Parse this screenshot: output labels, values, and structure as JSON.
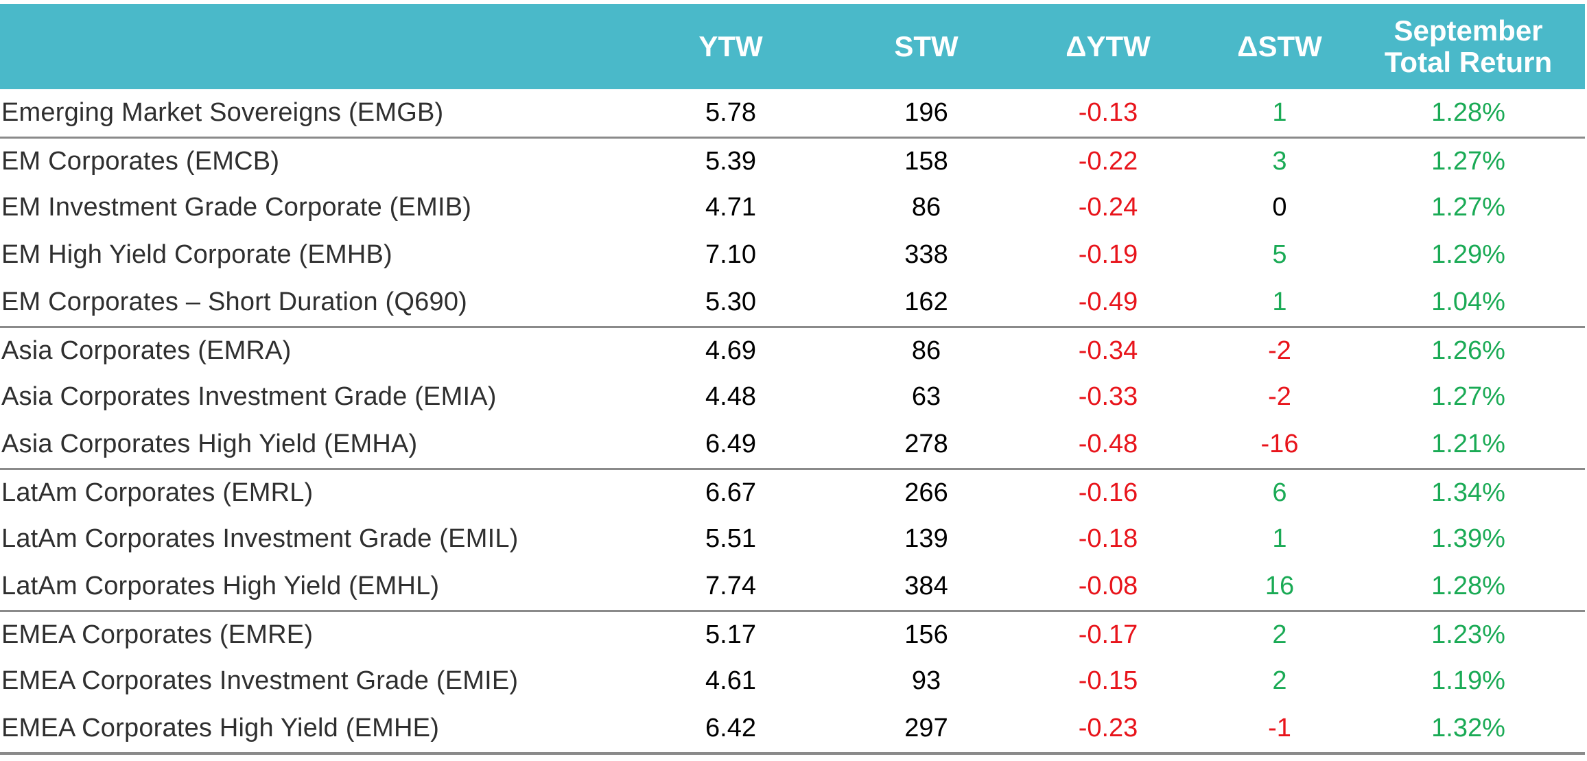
{
  "colors": {
    "header_bg": "#4ab9c9",
    "header_text": "#ffffff",
    "negative": "#e8141b",
    "positive": "#1aaa55",
    "neutral": "#000000"
  },
  "chart_data": {
    "type": "table",
    "columns": [
      "",
      "YTW",
      "STW",
      "ΔYTW",
      "ΔSTW",
      "September\nTotal Return"
    ],
    "rows": [
      {
        "name": "Emerging Market Sovereigns (EMGB)",
        "ytw": "5.78",
        "stw": "196",
        "dytw": "-0.13",
        "dstw": "1",
        "ret": "1.28%",
        "group_start": false
      },
      {
        "name": "EM Corporates (EMCB)",
        "ytw": "5.39",
        "stw": "158",
        "dytw": "-0.22",
        "dstw": "3",
        "ret": "1.27%",
        "group_start": true
      },
      {
        "name": "EM Investment Grade Corporate (EMIB)",
        "ytw": "4.71",
        "stw": "86",
        "dytw": "-0.24",
        "dstw": "0",
        "ret": "1.27%",
        "group_start": false
      },
      {
        "name": "EM High Yield Corporate (EMHB)",
        "ytw": "7.10",
        "stw": "338",
        "dytw": "-0.19",
        "dstw": "5",
        "ret": "1.29%",
        "group_start": false
      },
      {
        "name": "EM Corporates – Short Duration (Q690)",
        "ytw": "5.30",
        "stw": "162",
        "dytw": "-0.49",
        "dstw": "1",
        "ret": "1.04%",
        "group_start": false
      },
      {
        "name": "Asia Corporates (EMRA)",
        "ytw": "4.69",
        "stw": "86",
        "dytw": "-0.34",
        "dstw": "-2",
        "ret": "1.26%",
        "group_start": true
      },
      {
        "name": "Asia Corporates Investment Grade (EMIA)",
        "ytw": "4.48",
        "stw": "63",
        "dytw": "-0.33",
        "dstw": "-2",
        "ret": "1.27%",
        "group_start": false
      },
      {
        "name": "Asia Corporates High Yield (EMHA)",
        "ytw": "6.49",
        "stw": "278",
        "dytw": "-0.48",
        "dstw": "-16",
        "ret": "1.21%",
        "group_start": false
      },
      {
        "name": "LatAm Corporates (EMRL)",
        "ytw": "6.67",
        "stw": "266",
        "dytw": "-0.16",
        "dstw": "6",
        "ret": "1.34%",
        "group_start": true
      },
      {
        "name": "LatAm Corporates Investment Grade (EMIL)",
        "ytw": "5.51",
        "stw": "139",
        "dytw": "-0.18",
        "dstw": "1",
        "ret": "1.39%",
        "group_start": false
      },
      {
        "name": "LatAm Corporates High Yield (EMHL)",
        "ytw": "7.74",
        "stw": "384",
        "dytw": "-0.08",
        "dstw": "16",
        "ret": "1.28%",
        "group_start": false
      },
      {
        "name": "EMEA Corporates (EMRE)",
        "ytw": "5.17",
        "stw": "156",
        "dytw": "-0.17",
        "dstw": "2",
        "ret": "1.23%",
        "group_start": true
      },
      {
        "name": "EMEA Corporates Investment Grade (EMIE)",
        "ytw": "4.61",
        "stw": "93",
        "dytw": "-0.15",
        "dstw": "2",
        "ret": "1.19%",
        "group_start": false
      },
      {
        "name": "EMEA Corporates High Yield (EMHE)",
        "ytw": "6.42",
        "stw": "297",
        "dytw": "-0.23",
        "dstw": "-1",
        "ret": "1.32%",
        "group_start": false
      }
    ]
  }
}
